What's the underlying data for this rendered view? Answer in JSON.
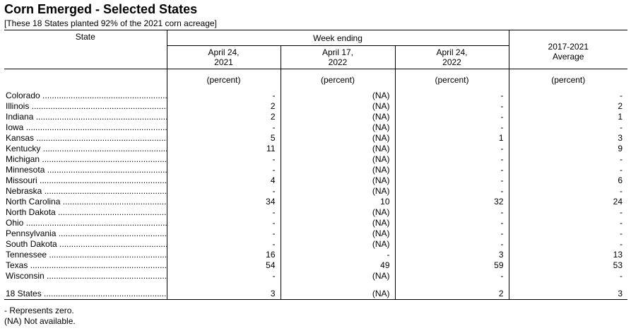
{
  "title": "Corn Emerged - Selected States",
  "subtitle": "[These 18 States planted 92% of the 2021 corn acreage]",
  "header": {
    "state": "State",
    "week_ending": "Week ending",
    "col1": [
      "April 24,",
      "2021"
    ],
    "col2": [
      "April 17,",
      "2022"
    ],
    "col3": [
      "April 24,",
      "2022"
    ],
    "col4": [
      "2017-2021",
      "Average"
    ]
  },
  "units": [
    "(percent)",
    "(percent)",
    "(percent)",
    "(percent)"
  ],
  "rows": [
    {
      "state": "Colorado",
      "v": [
        "-",
        "(NA)",
        "-",
        "-"
      ]
    },
    {
      "state": "Illinois",
      "v": [
        "2",
        "(NA)",
        "-",
        "2"
      ]
    },
    {
      "state": "Indiana",
      "v": [
        "2",
        "(NA)",
        "-",
        "1"
      ]
    },
    {
      "state": "Iowa",
      "v": [
        "-",
        "(NA)",
        "-",
        "-"
      ]
    },
    {
      "state": "Kansas",
      "v": [
        "5",
        "(NA)",
        "1",
        "3"
      ]
    },
    {
      "state": "Kentucky",
      "v": [
        "11",
        "(NA)",
        "-",
        "9"
      ]
    },
    {
      "state": "Michigan",
      "v": [
        "-",
        "(NA)",
        "-",
        "-"
      ]
    },
    {
      "state": "Minnesota",
      "v": [
        "-",
        "(NA)",
        "-",
        "-"
      ]
    },
    {
      "state": "Missouri",
      "v": [
        "4",
        "(NA)",
        "-",
        "6"
      ]
    },
    {
      "state": "Nebraska",
      "v": [
        "-",
        "(NA)",
        "-",
        "-"
      ]
    },
    {
      "state": "North Carolina",
      "v": [
        "34",
        "10",
        "32",
        "24"
      ]
    },
    {
      "state": "North Dakota",
      "v": [
        "-",
        "(NA)",
        "-",
        "-"
      ]
    },
    {
      "state": "Ohio",
      "v": [
        "-",
        "(NA)",
        "-",
        "-"
      ]
    },
    {
      "state": "Pennsylvania",
      "v": [
        "-",
        "(NA)",
        "-",
        "-"
      ]
    },
    {
      "state": "South Dakota",
      "v": [
        "-",
        "(NA)",
        "-",
        "-"
      ]
    },
    {
      "state": "Tennessee",
      "v": [
        "16",
        "-",
        "3",
        "13"
      ]
    },
    {
      "state": "Texas",
      "v": [
        "54",
        "49",
        "59",
        "53"
      ]
    },
    {
      "state": "Wisconsin",
      "v": [
        "-",
        "(NA)",
        "-",
        "-"
      ]
    }
  ],
  "total": {
    "state": "18 States",
    "v": [
      "3",
      "(NA)",
      "2",
      "3"
    ]
  },
  "footnotes": [
    "- Represents zero.",
    "(NA) Not available."
  ]
}
